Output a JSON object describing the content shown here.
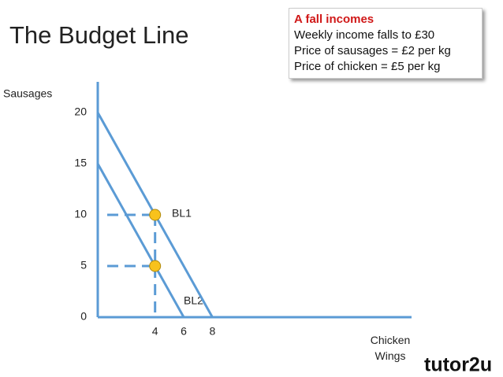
{
  "chart_data": {
    "type": "line",
    "title": "The Budget Line",
    "ylabel": "Sausages",
    "xlabel": "Chicken Wings",
    "series": [
      {
        "name": "BL1",
        "color": "#5b9bd5",
        "x": [
          0,
          8
        ],
        "values": [
          20,
          0
        ]
      },
      {
        "name": "BL2",
        "color": "#5b9bd5",
        "x": [
          0,
          6
        ],
        "values": [
          15,
          0
        ]
      }
    ],
    "points": {
      "color": "#f8c21c",
      "x": [
        4,
        4
      ],
      "values": [
        10,
        5
      ]
    },
    "xlim": [
      0,
      21.9
    ],
    "ylim": [
      0,
      23
    ],
    "xticks": [
      4,
      6,
      8
    ],
    "yticks": [
      0,
      5,
      10,
      15,
      20
    ],
    "annotation": {
      "title": "A fall incomes",
      "lines": [
        "Weekly income falls to £30",
        "Price of sausages = £2 per kg",
        "Price of chicken = £5 per kg"
      ]
    },
    "logo": "tutor2u"
  }
}
